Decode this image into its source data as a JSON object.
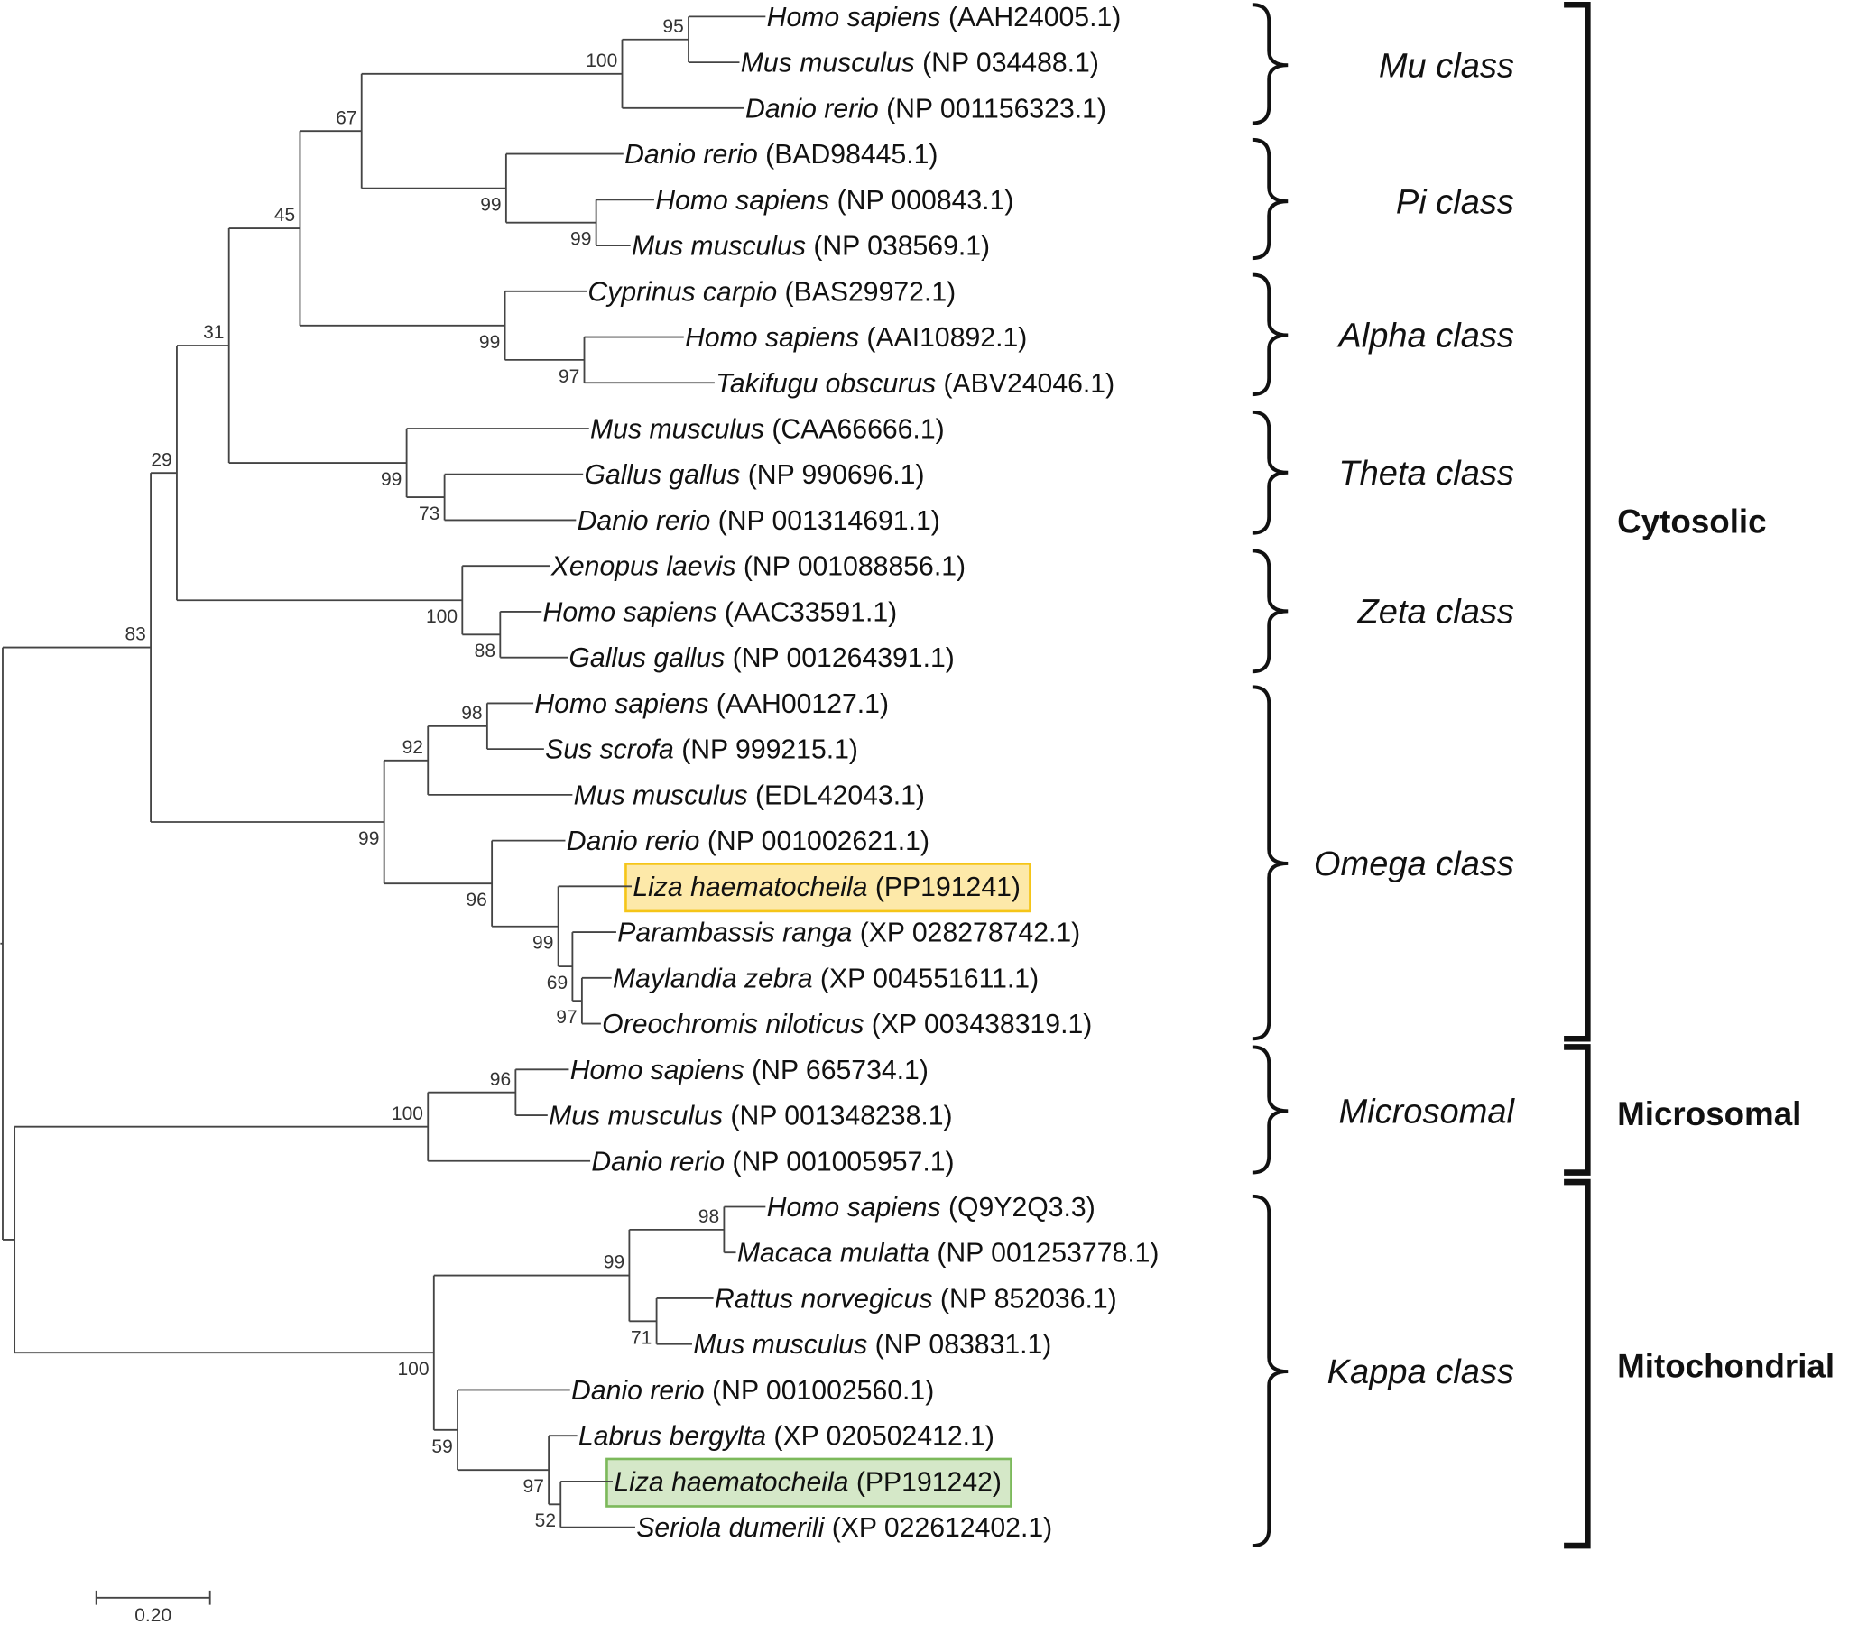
{
  "leaves": [
    {
      "species": "Homo sapiens",
      "accession": "(AAH24005.1)"
    },
    {
      "species": "Mus musculus",
      "accession": "(NP 034488.1)"
    },
    {
      "species": "Danio rerio",
      "accession": "(NP 001156323.1)"
    },
    {
      "species": "Danio rerio",
      "accession": "(BAD98445.1)"
    },
    {
      "species": "Homo sapiens",
      "accession": "(NP 000843.1)"
    },
    {
      "species": "Mus musculus",
      "accession": "(NP 038569.1)"
    },
    {
      "species": "Cyprinus carpio",
      "accession": "(BAS29972.1)"
    },
    {
      "species": "Homo sapiens",
      "accession": "(AAI10892.1)"
    },
    {
      "species": "Takifugu obscurus",
      "accession": "(ABV24046.1)"
    },
    {
      "species": "Mus musculus",
      "accession": "(CAA66666.1)"
    },
    {
      "species": "Gallus gallus",
      "accession": "(NP 990696.1)"
    },
    {
      "species": "Danio rerio",
      "accession": "(NP 001314691.1)"
    },
    {
      "species": "Xenopus laevis",
      "accession": "(NP 001088856.1)"
    },
    {
      "species": "Homo sapiens",
      "accession": "(AAC33591.1)"
    },
    {
      "species": "Gallus gallus",
      "accession": "(NP 001264391.1)"
    },
    {
      "species": "Homo sapiens",
      "accession": "(AAH00127.1)"
    },
    {
      "species": "Sus scrofa",
      "accession": "(NP 999215.1)"
    },
    {
      "species": "Mus musculus",
      "accession": "(EDL42043.1)"
    },
    {
      "species": "Danio rerio",
      "accession": "(NP 001002621.1)"
    },
    {
      "species": "Liza haematocheila",
      "accession": "(PP191241)",
      "highlight": "#fde9a9",
      "highlight_border": "#f5c518"
    },
    {
      "species": "Parambassis ranga",
      "accession": "(XP 028278742.1)"
    },
    {
      "species": "Maylandia zebra",
      "accession": "(XP 004551611.1)"
    },
    {
      "species": "Oreochromis niloticus",
      "accession": "(XP 003438319.1)"
    },
    {
      "species": "Homo sapiens",
      "accession": "(NP 665734.1)"
    },
    {
      "species": "Mus musculus",
      "accession": "(NP 001348238.1)"
    },
    {
      "species": "Danio rerio",
      "accession": "(NP 001005957.1)"
    },
    {
      "species": "Homo sapiens",
      "accession": "(Q9Y2Q3.3)"
    },
    {
      "species": "Macaca mulatta",
      "accession": "(NP 001253778.1)"
    },
    {
      "species": "Rattus norvegicus",
      "accession": "(NP 852036.1)"
    },
    {
      "species": "Mus musculus",
      "accession": "(NP 083831.1)"
    },
    {
      "species": "Danio rerio",
      "accession": "(NP 001002560.1)"
    },
    {
      "species": "Labrus bergylta",
      "accession": "(XP 020502412.1)"
    },
    {
      "species": "Liza haematocheila",
      "accession": "(PP191242)",
      "highlight": "#d5e8c8",
      "highlight_border": "#7cb95b"
    },
    {
      "species": "Seriola dumerili",
      "accession": "(XP 022612402.1)"
    }
  ],
  "bootstrap": {
    "mu_95": "95",
    "mu_100": "100",
    "pi_99a": "99",
    "pi_99b": "99",
    "n67": "67",
    "alpha_97": "97",
    "alpha_99": "99",
    "n45": "45",
    "theta_73": "73",
    "theta_99": "99",
    "n31": "31",
    "zeta_88": "88",
    "zeta_100": "100",
    "n29": "29",
    "omega_98": "98",
    "omega_92": "92",
    "omega_97": "97",
    "omega_69": "69",
    "omega_99a": "99",
    "omega_96": "96",
    "omega_99b": "99",
    "n83": "83",
    "micro_96": "96",
    "micro_100": "100",
    "kappa_98": "98",
    "kappa_71": "71",
    "kappa_99": "99",
    "kappa_52": "52",
    "kappa_97": "97",
    "kappa_59": "59",
    "kappa_100": "100"
  },
  "classes": [
    "Mu class",
    "Pi class",
    "Alpha class",
    "Theta class",
    "Zeta class",
    "Omega class",
    "Microsomal",
    "Kappa class"
  ],
  "groups": [
    "Cytosolic",
    "Microsomal",
    "Mitochondrial"
  ],
  "scale_bar": {
    "label": "0.20",
    "value": 0.2
  }
}
